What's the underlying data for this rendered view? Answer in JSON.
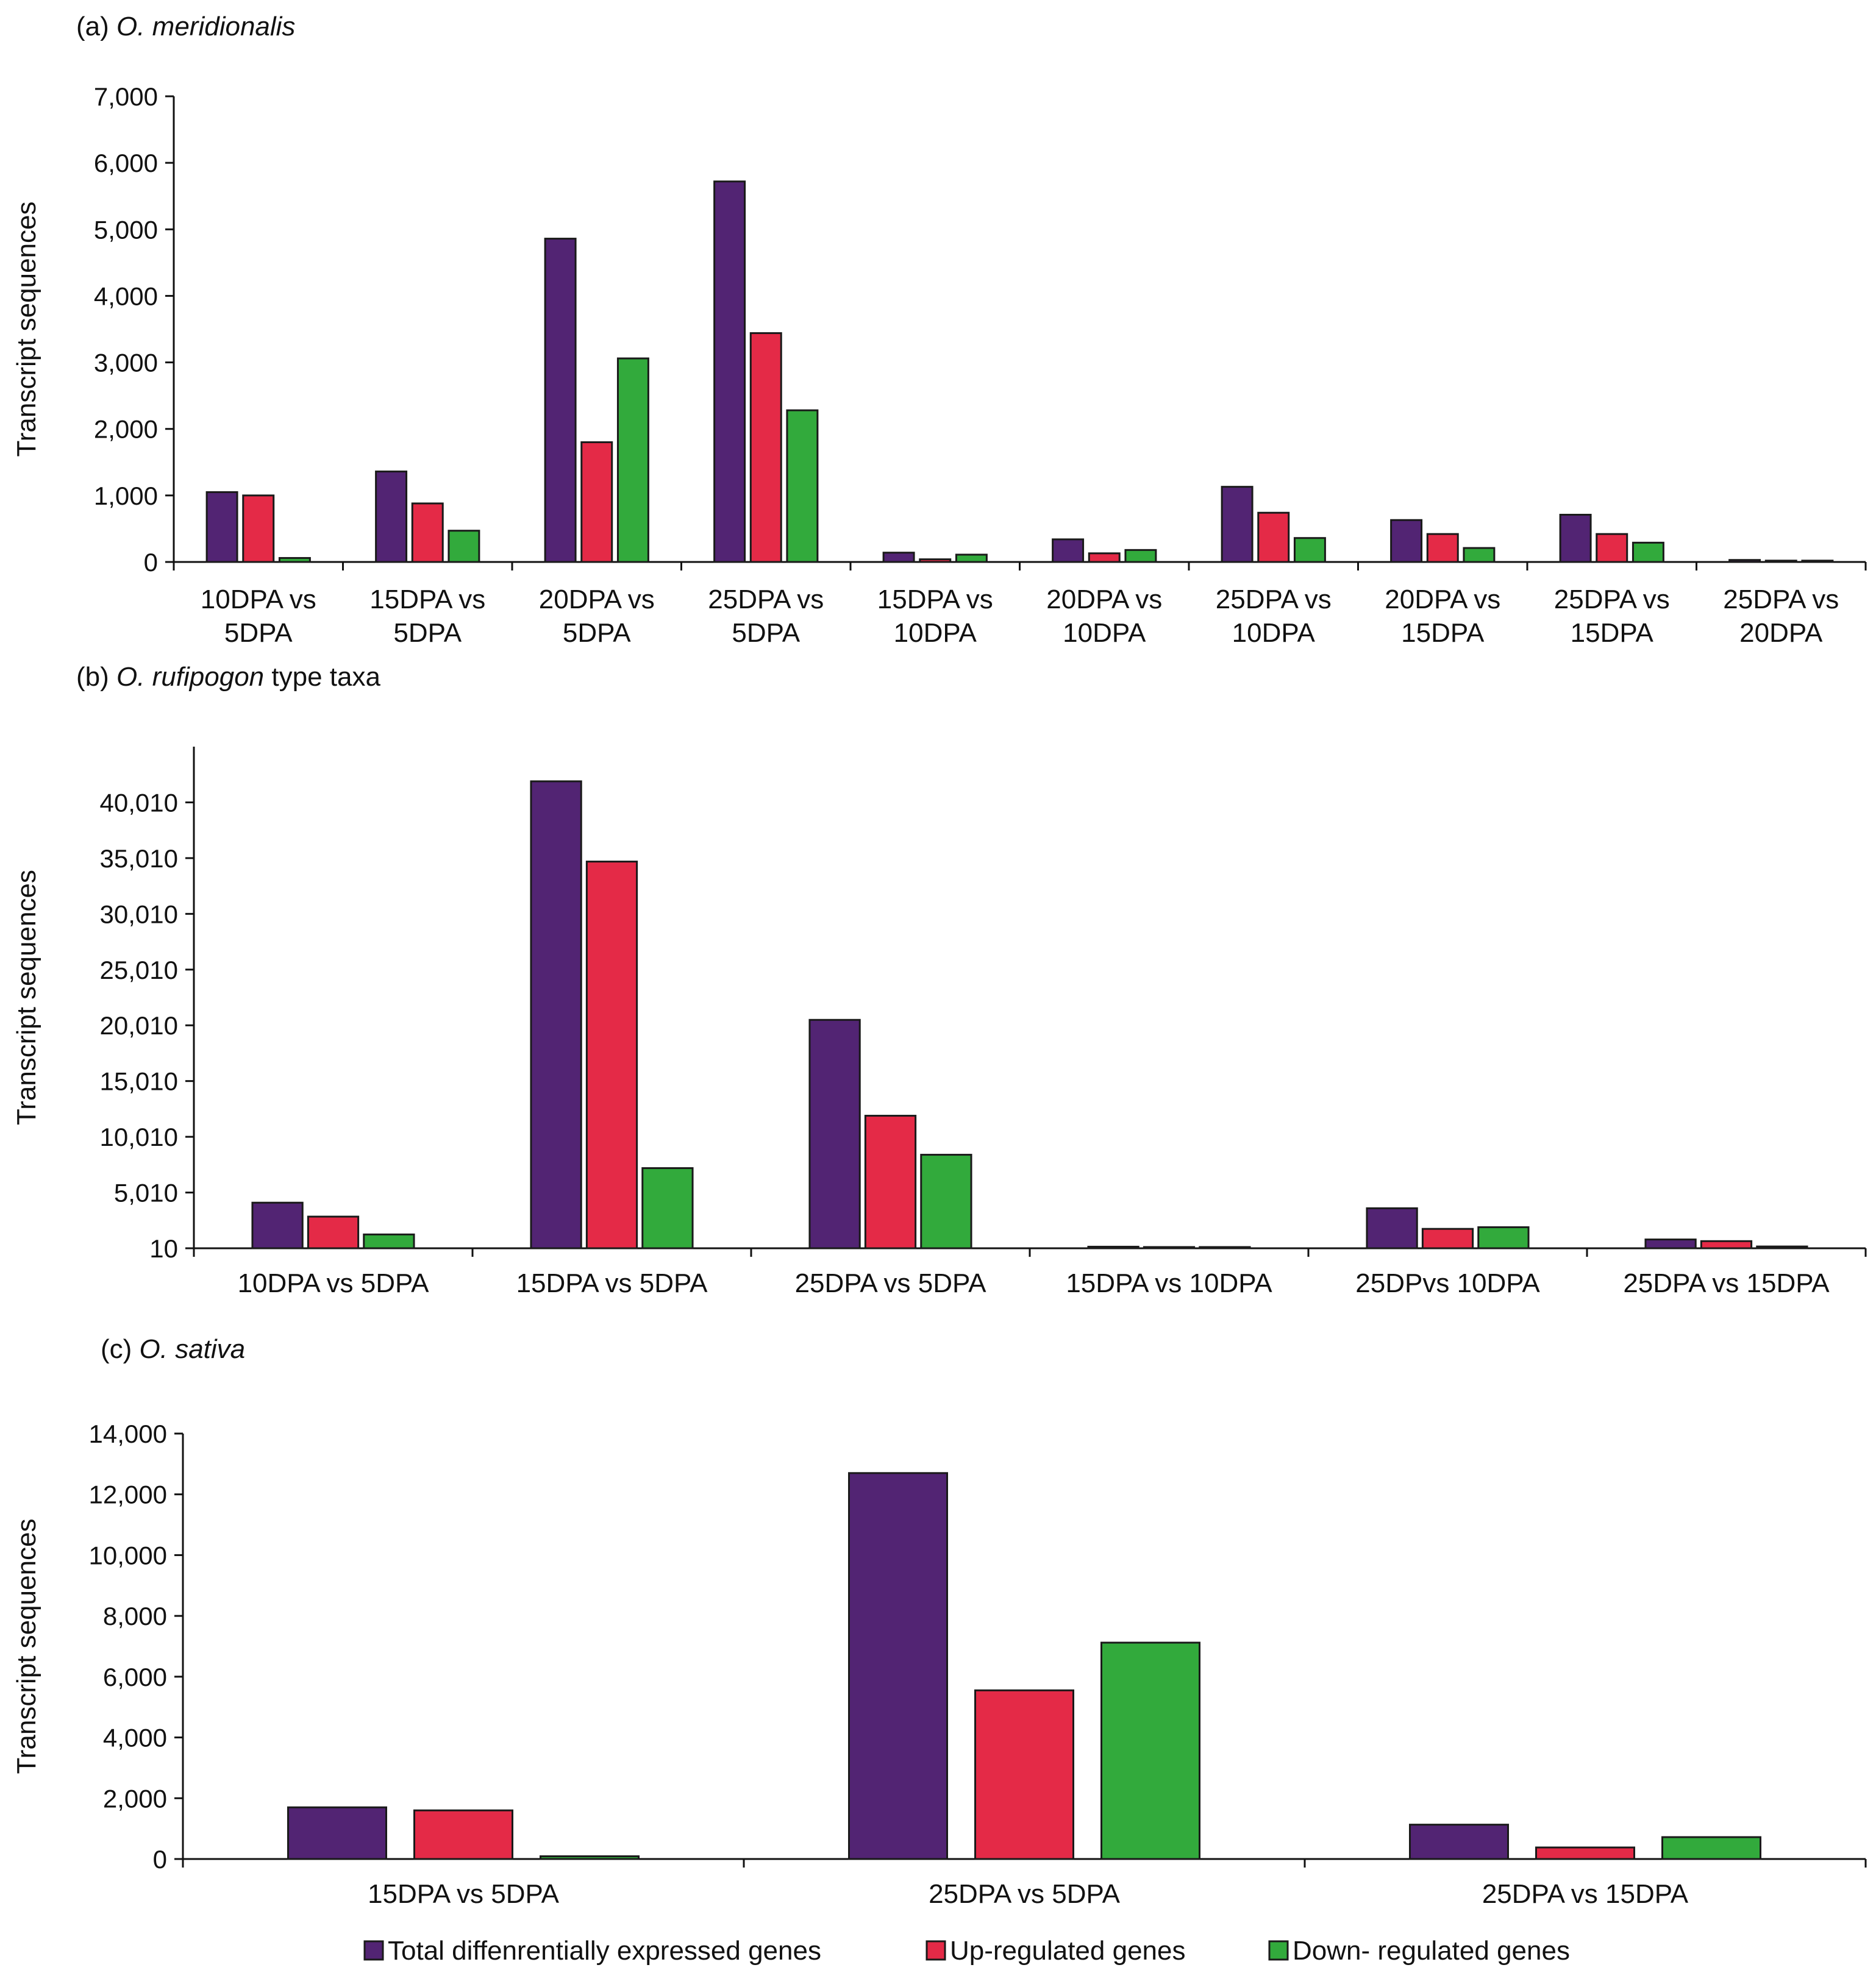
{
  "figure": {
    "legend": [
      {
        "label": "Total diffenrentially expressed genes",
        "color": "#522473"
      },
      {
        "label": "Up-regulated genes",
        "color": "#e42a47"
      },
      {
        "label": "Down- regulated genes",
        "color": "#32aa3c"
      }
    ],
    "bar_outline_color": "#1a1a1a"
  },
  "chart_data": [
    {
      "type": "bar",
      "panel": "(a)",
      "title_prefix": "(a) ",
      "title_species": "O. meridionalis",
      "title_suffix": "",
      "ylabel": "Transcript sequences",
      "xlabel": "",
      "ylim": [
        0,
        7000
      ],
      "yticks": [
        0,
        1000,
        2000,
        3000,
        4000,
        5000,
        6000,
        7000
      ],
      "ytick_labels": [
        "0",
        "1,000",
        "2,000",
        "3,000",
        "4,000",
        "5,000",
        "6,000",
        "7,000"
      ],
      "categories": [
        [
          "10DPA vs",
          "5DPA"
        ],
        [
          "15DPA vs",
          "5DPA"
        ],
        [
          "20DPA vs",
          "5DPA"
        ],
        [
          "25DPA vs",
          "5DPA"
        ],
        [
          "15DPA vs",
          "10DPA"
        ],
        [
          "20DPA vs",
          "10DPA"
        ],
        [
          "25DPA vs",
          "10DPA"
        ],
        [
          "20DPA vs",
          "15DPA"
        ],
        [
          "25DPA vs",
          "15DPA"
        ],
        [
          "25DPA vs",
          "20DPA"
        ]
      ],
      "series": [
        {
          "name": "Total diffenrentially expressed genes",
          "values": [
            1050,
            1360,
            4860,
            5720,
            140,
            340,
            1130,
            630,
            710,
            30
          ]
        },
        {
          "name": "Up-regulated genes",
          "values": [
            1000,
            880,
            1800,
            3440,
            40,
            130,
            740,
            420,
            420,
            20
          ]
        },
        {
          "name": "Down- regulated genes",
          "values": [
            60,
            470,
            3060,
            2280,
            110,
            180,
            360,
            210,
            290,
            20
          ]
        }
      ]
    },
    {
      "type": "bar",
      "panel": "(b)",
      "title_prefix": "(b) ",
      "title_species": "O. rufipogon",
      "title_suffix": "  type taxa",
      "ylabel": "Transcript sequences",
      "xlabel": "",
      "ylim": [
        10,
        45010
      ],
      "yticks": [
        10,
        5010,
        10010,
        15010,
        20010,
        25010,
        30010,
        35010,
        40010
      ],
      "ytick_labels": [
        "10",
        "5,010",
        "10,010",
        "15,010",
        "20,010",
        "25,010",
        "30,010",
        "35,010",
        "40,010"
      ],
      "categories": [
        [
          "10DPA vs 5DPA"
        ],
        [
          "15DPA vs 5DPA"
        ],
        [
          "25DPA vs 5DPA"
        ],
        [
          "15DPA vs 10DPA"
        ],
        [
          "25DPvs 10DPA"
        ],
        [
          "25DPA vs 15DPA"
        ]
      ],
      "series": [
        {
          "name": "Total diffenrentially expressed genes",
          "values": [
            4100,
            41900,
            20500,
            150,
            3600,
            800
          ]
        },
        {
          "name": "Up-regulated genes",
          "values": [
            2850,
            34700,
            11900,
            120,
            1750,
            650
          ]
        },
        {
          "name": "Down- regulated genes",
          "values": [
            1250,
            7200,
            8400,
            100,
            1900,
            170
          ]
        }
      ]
    },
    {
      "type": "bar",
      "panel": "(c)",
      "title_prefix": "(c) ",
      "title_species": "O. sativa",
      "title_suffix": "",
      "ylabel": "Transcript sequences",
      "xlabel": "",
      "ylim": [
        0,
        14000
      ],
      "yticks": [
        0,
        2000,
        4000,
        6000,
        8000,
        10000,
        12000,
        14000
      ],
      "ytick_labels": [
        "0",
        "2,000",
        "4,000",
        "6,000",
        "8,000",
        "10,000",
        "12,000",
        "14,000"
      ],
      "categories": [
        [
          "15DPA vs 5DPA"
        ],
        [
          "25DPA vs 5DPA"
        ],
        [
          "25DPA vs 15DPA"
        ]
      ],
      "series": [
        {
          "name": "Total diffenrentially expressed genes",
          "values": [
            1700,
            12700,
            1130
          ]
        },
        {
          "name": "Up-regulated genes",
          "values": [
            1600,
            5550,
            380
          ]
        },
        {
          "name": "Down- regulated genes",
          "values": [
            90,
            7120,
            720
          ]
        }
      ]
    }
  ]
}
